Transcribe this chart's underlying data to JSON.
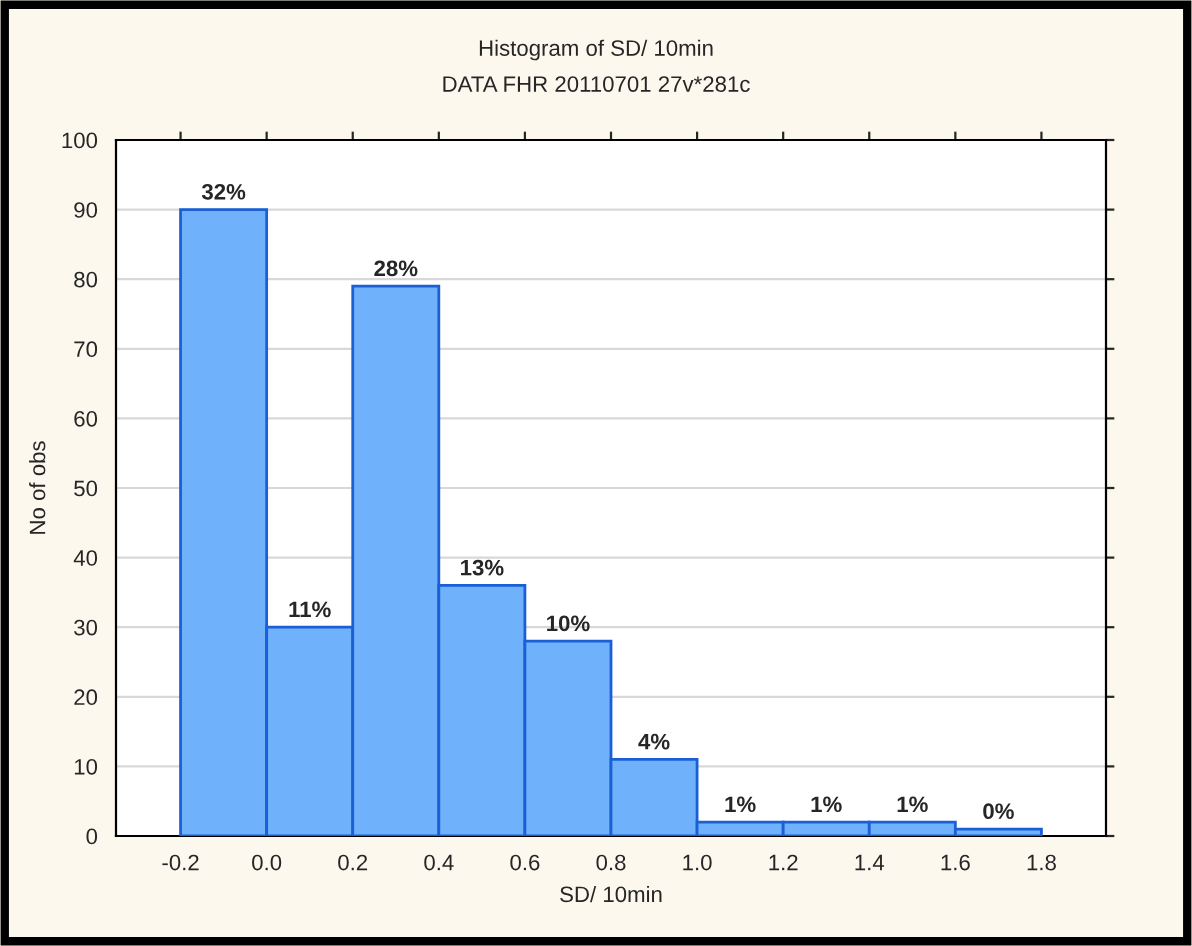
{
  "chart_data": {
    "type": "histogram",
    "title": "Histogram of SD/ 10min",
    "subtitle": "DATA FHR 20110701 27v*281c",
    "xlabel": "SD/ 10min",
    "ylabel": "No of obs",
    "bins": [
      -0.2,
      0.0,
      0.2,
      0.4,
      0.6,
      0.8,
      1.0,
      1.2,
      1.4,
      1.6,
      1.8
    ],
    "values": [
      90,
      30,
      79,
      36,
      28,
      11,
      2,
      2,
      2,
      1
    ],
    "annotations": [
      {
        "text": "32%",
        "x": -0.1,
        "y": 90
      },
      {
        "text": "11%",
        "x": 0.1,
        "y": 30
      },
      {
        "text": "28%",
        "x": 0.3,
        "y": 79
      },
      {
        "text": "13%",
        "x": 0.5,
        "y": 36
      },
      {
        "text": "10%",
        "x": 0.7,
        "y": 28
      },
      {
        "text": "4%",
        "x": 0.9,
        "y": 11
      },
      {
        "text": "1%",
        "x": 1.1,
        "y": 2
      },
      {
        "text": "1%",
        "x": 1.3,
        "y": 2
      },
      {
        "text": "1%",
        "x": 1.5,
        "y": 2
      },
      {
        "text": "0%",
        "x": 1.7,
        "y": 1
      }
    ],
    "color": "#6fb2fb",
    "xlim": [
      -0.35,
      1.95
    ],
    "ylim": [
      0,
      100
    ],
    "xticks": [
      {
        "value": -0.2,
        "label": "-0.2"
      },
      {
        "value": 0.0,
        "label": "0.0"
      },
      {
        "value": 0.2,
        "label": "0.2"
      },
      {
        "value": 0.4,
        "label": "0.4"
      },
      {
        "value": 0.6,
        "label": "0.6"
      },
      {
        "value": 0.8,
        "label": "0.8"
      },
      {
        "value": 1.0,
        "label": "1.0"
      },
      {
        "value": 1.2,
        "label": "1.2"
      },
      {
        "value": 1.4,
        "label": "1.4"
      },
      {
        "value": 1.6,
        "label": "1.6"
      },
      {
        "value": 1.8,
        "label": "1.8"
      }
    ],
    "yticks": [
      0,
      10,
      20,
      30,
      40,
      50,
      60,
      70,
      80,
      90,
      100
    ],
    "grid": "y"
  }
}
